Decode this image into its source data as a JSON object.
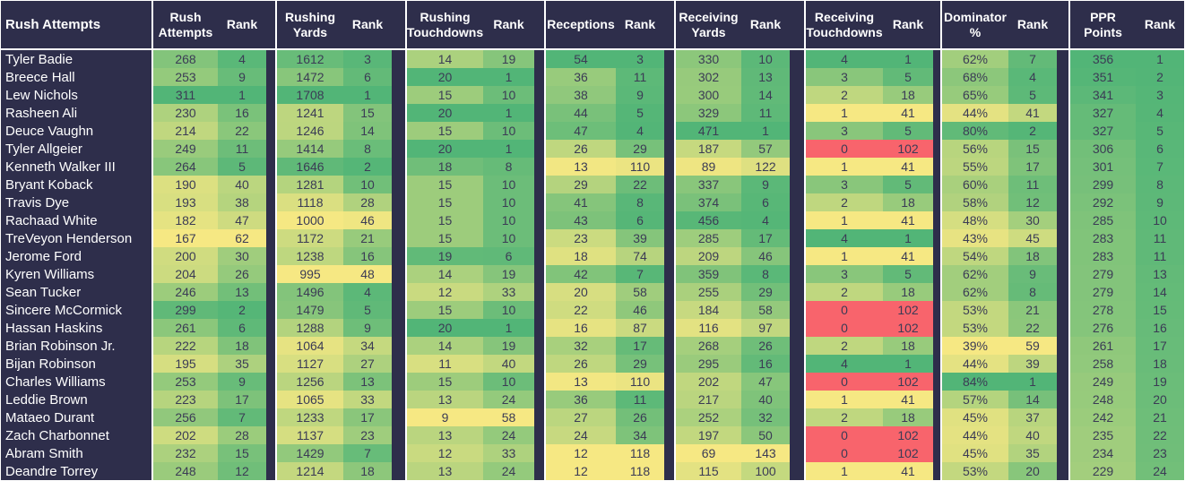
{
  "chart_data": {
    "type": "table",
    "name_column_header": "Rush Attempts",
    "rank_label": "Rank",
    "sections": [
      {
        "key": "rush_attempts",
        "label": "Rush Attempts",
        "suffix": ""
      },
      {
        "key": "rushing_yards",
        "label": "Rushing Yards",
        "suffix": ""
      },
      {
        "key": "rushing_touchdowns",
        "label": "Rushing Touchdowns",
        "suffix": ""
      },
      {
        "key": "receptions",
        "label": "Receptions",
        "suffix": ""
      },
      {
        "key": "receiving_yards",
        "label": "Receiving Yards",
        "suffix": ""
      },
      {
        "key": "receiving_touchdowns",
        "label": "Receiving Touchdowns",
        "suffix": ""
      },
      {
        "key": "dominator_pct",
        "label": "Dominator %",
        "suffix": "%"
      },
      {
        "key": "ppr_points",
        "label": "PPR Points",
        "suffix": ""
      }
    ],
    "rows": [
      {
        "name": "Tyler Badie",
        "stats": [
          [
            268,
            4
          ],
          [
            1612,
            3
          ],
          [
            14,
            19
          ],
          [
            54,
            3
          ],
          [
            330,
            10
          ],
          [
            4,
            1
          ],
          [
            "62%",
            7
          ],
          [
            356,
            1
          ]
        ]
      },
      {
        "name": "Breece Hall",
        "stats": [
          [
            253,
            9
          ],
          [
            1472,
            6
          ],
          [
            20,
            1
          ],
          [
            36,
            11
          ],
          [
            302,
            13
          ],
          [
            3,
            5
          ],
          [
            "68%",
            4
          ],
          [
            351,
            2
          ]
        ]
      },
      {
        "name": "Lew Nichols",
        "stats": [
          [
            311,
            1
          ],
          [
            1708,
            1
          ],
          [
            15,
            10
          ],
          [
            38,
            9
          ],
          [
            300,
            14
          ],
          [
            2,
            18
          ],
          [
            "65%",
            5
          ],
          [
            341,
            3
          ]
        ]
      },
      {
        "name": "Rasheen Ali",
        "stats": [
          [
            230,
            16
          ],
          [
            1241,
            15
          ],
          [
            20,
            1
          ],
          [
            44,
            5
          ],
          [
            329,
            11
          ],
          [
            1,
            41
          ],
          [
            "44%",
            41
          ],
          [
            327,
            4
          ]
        ]
      },
      {
        "name": "Deuce Vaughn",
        "stats": [
          [
            214,
            22
          ],
          [
            1246,
            14
          ],
          [
            15,
            10
          ],
          [
            47,
            4
          ],
          [
            471,
            1
          ],
          [
            3,
            5
          ],
          [
            "80%",
            2
          ],
          [
            327,
            5
          ]
        ]
      },
      {
        "name": "Tyler Allgeier",
        "stats": [
          [
            249,
            11
          ],
          [
            1414,
            8
          ],
          [
            20,
            1
          ],
          [
            26,
            29
          ],
          [
            187,
            57
          ],
          [
            0,
            102
          ],
          [
            "56%",
            15
          ],
          [
            306,
            6
          ]
        ]
      },
      {
        "name": "Kenneth Walker III",
        "stats": [
          [
            264,
            5
          ],
          [
            1646,
            2
          ],
          [
            18,
            8
          ],
          [
            13,
            110
          ],
          [
            89,
            122
          ],
          [
            1,
            41
          ],
          [
            "55%",
            17
          ],
          [
            301,
            7
          ]
        ]
      },
      {
        "name": "Bryant Koback",
        "stats": [
          [
            190,
            40
          ],
          [
            1281,
            10
          ],
          [
            15,
            10
          ],
          [
            29,
            22
          ],
          [
            337,
            9
          ],
          [
            3,
            5
          ],
          [
            "60%",
            11
          ],
          [
            299,
            8
          ]
        ]
      },
      {
        "name": "Travis Dye",
        "stats": [
          [
            193,
            38
          ],
          [
            1118,
            28
          ],
          [
            15,
            10
          ],
          [
            41,
            8
          ],
          [
            374,
            6
          ],
          [
            2,
            18
          ],
          [
            "58%",
            12
          ],
          [
            292,
            9
          ]
        ]
      },
      {
        "name": "Rachaad White",
        "stats": [
          [
            182,
            47
          ],
          [
            1000,
            46
          ],
          [
            15,
            10
          ],
          [
            43,
            6
          ],
          [
            456,
            4
          ],
          [
            1,
            41
          ],
          [
            "48%",
            30
          ],
          [
            285,
            10
          ]
        ]
      },
      {
        "name": "TreVeyon Henderson",
        "stats": [
          [
            167,
            62
          ],
          [
            1172,
            21
          ],
          [
            15,
            10
          ],
          [
            23,
            39
          ],
          [
            285,
            17
          ],
          [
            4,
            1
          ],
          [
            "43%",
            45
          ],
          [
            283,
            11
          ]
        ]
      },
      {
        "name": "Jerome Ford",
        "stats": [
          [
            200,
            30
          ],
          [
            1238,
            16
          ],
          [
            19,
            6
          ],
          [
            18,
            74
          ],
          [
            209,
            46
          ],
          [
            1,
            41
          ],
          [
            "54%",
            18
          ],
          [
            283,
            11
          ]
        ]
      },
      {
        "name": "Kyren Williams",
        "stats": [
          [
            204,
            26
          ],
          [
            995,
            48
          ],
          [
            14,
            19
          ],
          [
            42,
            7
          ],
          [
            359,
            8
          ],
          [
            3,
            5
          ],
          [
            "62%",
            9
          ],
          [
            279,
            13
          ]
        ]
      },
      {
        "name": "Sean Tucker",
        "stats": [
          [
            246,
            13
          ],
          [
            1496,
            4
          ],
          [
            12,
            33
          ],
          [
            20,
            58
          ],
          [
            255,
            29
          ],
          [
            2,
            18
          ],
          [
            "62%",
            8
          ],
          [
            279,
            14
          ]
        ]
      },
      {
        "name": "Sincere McCormick",
        "stats": [
          [
            299,
            2
          ],
          [
            1479,
            5
          ],
          [
            15,
            10
          ],
          [
            22,
            46
          ],
          [
            184,
            58
          ],
          [
            0,
            102
          ],
          [
            "53%",
            21
          ],
          [
            278,
            15
          ]
        ]
      },
      {
        "name": "Hassan Haskins",
        "stats": [
          [
            261,
            6
          ],
          [
            1288,
            9
          ],
          [
            20,
            1
          ],
          [
            16,
            87
          ],
          [
            116,
            97
          ],
          [
            0,
            102
          ],
          [
            "53%",
            22
          ],
          [
            276,
            16
          ]
        ]
      },
      {
        "name": "Brian Robinson Jr.",
        "stats": [
          [
            222,
            18
          ],
          [
            1064,
            34
          ],
          [
            14,
            19
          ],
          [
            32,
            17
          ],
          [
            268,
            26
          ],
          [
            2,
            18
          ],
          [
            "39%",
            59
          ],
          [
            261,
            17
          ]
        ]
      },
      {
        "name": "Bijan Robinson",
        "stats": [
          [
            195,
            35
          ],
          [
            1127,
            27
          ],
          [
            11,
            40
          ],
          [
            26,
            29
          ],
          [
            295,
            16
          ],
          [
            4,
            1
          ],
          [
            "44%",
            39
          ],
          [
            258,
            18
          ]
        ]
      },
      {
        "name": "Charles Williams",
        "stats": [
          [
            253,
            9
          ],
          [
            1256,
            13
          ],
          [
            15,
            10
          ],
          [
            13,
            110
          ],
          [
            202,
            47
          ],
          [
            0,
            102
          ],
          [
            "84%",
            1
          ],
          [
            249,
            19
          ]
        ]
      },
      {
        "name": "Leddie Brown",
        "stats": [
          [
            223,
            17
          ],
          [
            1065,
            33
          ],
          [
            13,
            24
          ],
          [
            36,
            11
          ],
          [
            217,
            40
          ],
          [
            1,
            41
          ],
          [
            "57%",
            14
          ],
          [
            248,
            20
          ]
        ]
      },
      {
        "name": "Mataeo Durant",
        "stats": [
          [
            256,
            7
          ],
          [
            1233,
            17
          ],
          [
            9,
            58
          ],
          [
            27,
            26
          ],
          [
            252,
            32
          ],
          [
            2,
            18
          ],
          [
            "45%",
            37
          ],
          [
            242,
            21
          ]
        ]
      },
      {
        "name": "Zach Charbonnet",
        "stats": [
          [
            202,
            28
          ],
          [
            1137,
            23
          ],
          [
            13,
            24
          ],
          [
            24,
            34
          ],
          [
            197,
            50
          ],
          [
            0,
            102
          ],
          [
            "44%",
            40
          ],
          [
            235,
            22
          ]
        ]
      },
      {
        "name": "Abram Smith",
        "stats": [
          [
            232,
            15
          ],
          [
            1429,
            7
          ],
          [
            12,
            33
          ],
          [
            12,
            118
          ],
          [
            69,
            143
          ],
          [
            0,
            102
          ],
          [
            "45%",
            35
          ],
          [
            234,
            23
          ]
        ]
      },
      {
        "name": "Deandre Torrey",
        "stats": [
          [
            248,
            12
          ],
          [
            1214,
            18
          ],
          [
            13,
            24
          ],
          [
            12,
            118
          ],
          [
            115,
            100
          ],
          [
            1,
            41
          ],
          [
            "53%",
            20
          ],
          [
            229,
            24
          ]
        ]
      }
    ]
  },
  "colors": {
    "background_navy": "#2e2e4b",
    "header_text": "#ffffff",
    "cell_text": "#3b3b55",
    "scale_green": "#52b577",
    "scale_yellow": "#f6e883",
    "scale_red": "#f8646c",
    "separator": "#ffffff"
  }
}
